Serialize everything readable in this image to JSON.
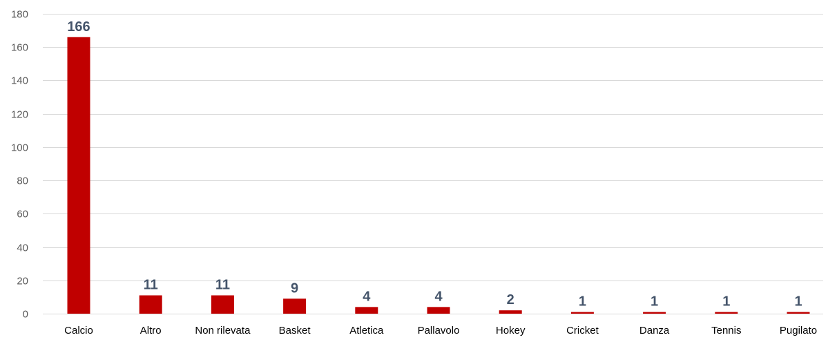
{
  "chart_data": {
    "type": "bar",
    "title": "",
    "xlabel": "",
    "ylabel": "",
    "categories": [
      "Calcio",
      "Altro",
      "Non rilevata",
      "Basket",
      "Atletica",
      "Pallavolo",
      "Hokey",
      "Cricket",
      "Danza",
      "Tennis",
      "Pugilato"
    ],
    "values": [
      166,
      11,
      11,
      9,
      4,
      4,
      2,
      1,
      1,
      1,
      1
    ],
    "data_labels": [
      "166",
      "11",
      "11",
      "9",
      "4",
      "4",
      "2",
      "1",
      "1",
      "1",
      "1"
    ],
    "ylim": [
      0,
      180
    ],
    "yticks": [
      0,
      20,
      40,
      60,
      80,
      100,
      120,
      140,
      160,
      180
    ],
    "ytick_labels": [
      "0",
      "20",
      "40",
      "60",
      "80",
      "100",
      "120",
      "140",
      "160",
      "180"
    ],
    "grid": true,
    "legend": "none",
    "bar_color": "#c00000",
    "label_color": "#44546a",
    "gridline_color": "#d9d9d9"
  }
}
